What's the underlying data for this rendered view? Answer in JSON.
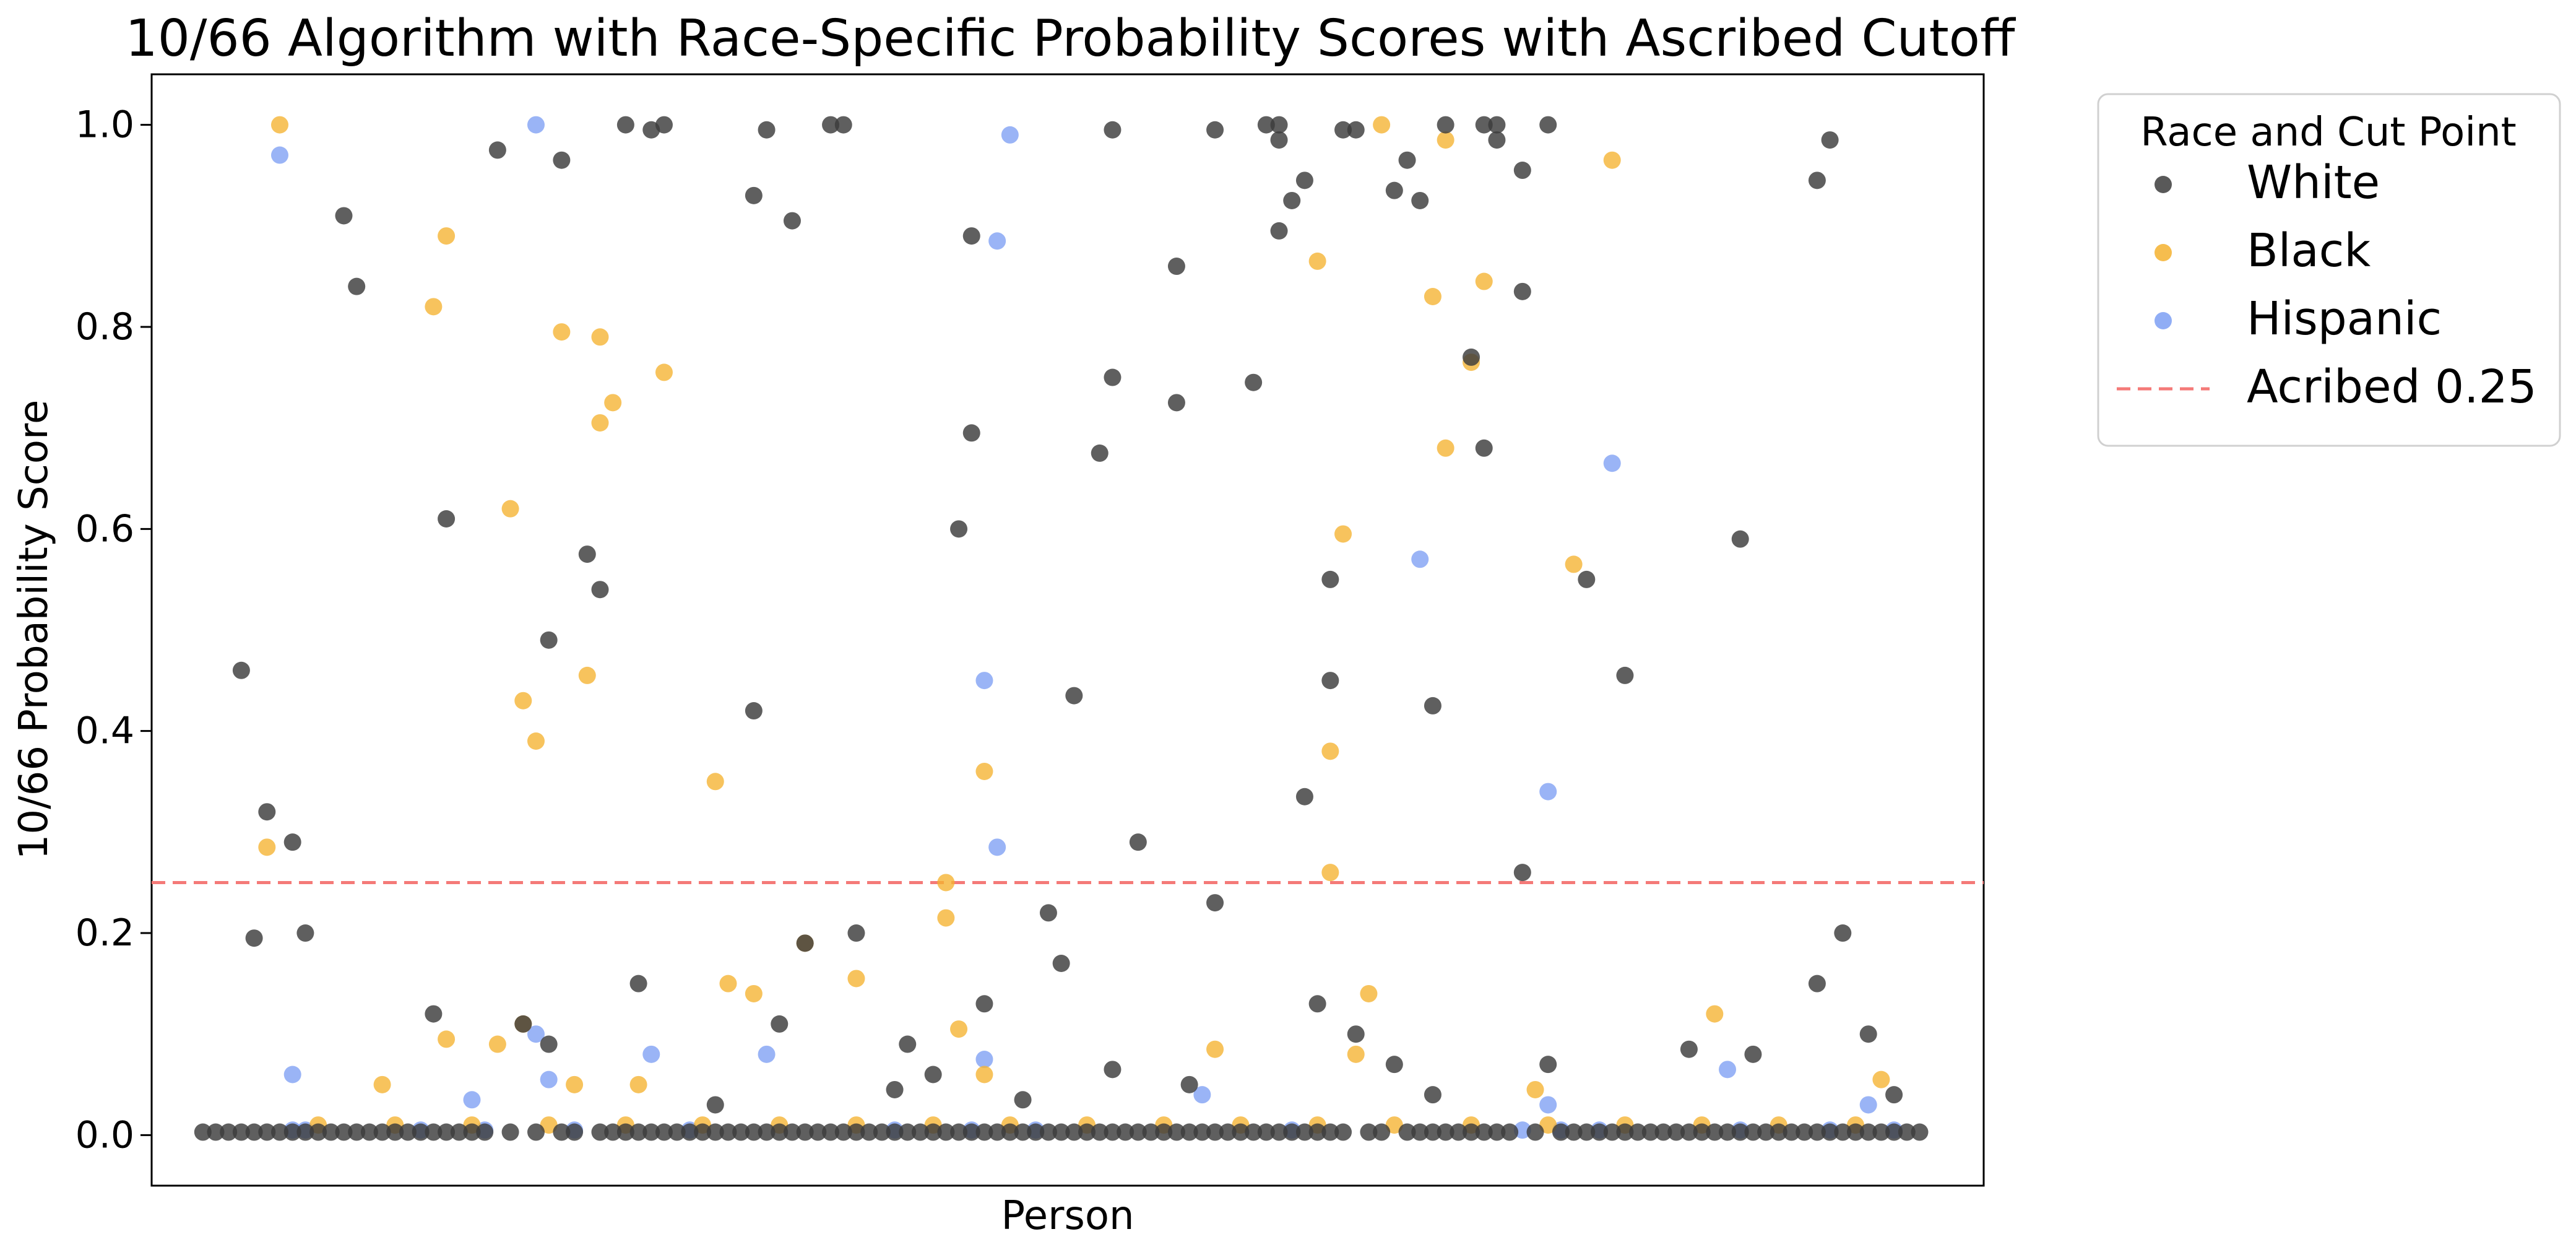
{
  "chart_data": {
    "type": "scatter",
    "title": "10/66 Algorithm with Race-Specific Probability Scores with Ascribed Cutoff",
    "xlabel": "Person",
    "ylabel": "10/66 Probability Score",
    "ylim": [
      -0.05,
      1.05
    ],
    "yticks": [
      "0.0",
      "0.2",
      "0.4",
      "0.6",
      "0.8",
      "1.0"
    ],
    "xticks_shown": false,
    "grid": false,
    "legend": {
      "title": "Race and Cut Point",
      "placement": "outside-upper-right",
      "entries": [
        "White",
        "Black",
        "Hispanic",
        "Acribed 0.25"
      ]
    },
    "cutoff": {
      "name": "Acribed 0.25",
      "value": 0.25,
      "color": "#f47a78",
      "style": "dashed"
    },
    "series": [
      {
        "name": "White",
        "color": "#3c3c3c",
        "points": [
          [
            4,
            0.46
          ],
          [
            6,
            0.32
          ],
          [
            5,
            0.195
          ],
          [
            8,
            0.29
          ],
          [
            9,
            0.2
          ],
          [
            12,
            0.91
          ],
          [
            13,
            0.84
          ],
          [
            20,
            0.61
          ],
          [
            24,
            0.975
          ],
          [
            29,
            0.965
          ],
          [
            28,
            0.49
          ],
          [
            31,
            0.575
          ],
          [
            32,
            0.54
          ],
          [
            34,
            1.0
          ],
          [
            36,
            0.995
          ],
          [
            37,
            1.0
          ],
          [
            44,
            0.42
          ],
          [
            45,
            0.995
          ],
          [
            44,
            0.93
          ],
          [
            47,
            0.905
          ],
          [
            50,
            1.0
          ],
          [
            51,
            1.0
          ],
          [
            61,
            0.89
          ],
          [
            60,
            0.6
          ],
          [
            61,
            0.695
          ],
          [
            67,
            0.22
          ],
          [
            68,
            0.17
          ],
          [
            69,
            0.435
          ],
          [
            71,
            0.675
          ],
          [
            72,
            0.995
          ],
          [
            72,
            0.75
          ],
          [
            74,
            0.29
          ],
          [
            77,
            0.86
          ],
          [
            77,
            0.725
          ],
          [
            80,
            0.995
          ],
          [
            80,
            0.23
          ],
          [
            83,
            0.745
          ],
          [
            84,
            1.0
          ],
          [
            85,
            1.0
          ],
          [
            85,
            0.985
          ],
          [
            85,
            0.895
          ],
          [
            86,
            0.925
          ],
          [
            87,
            0.945
          ],
          [
            87,
            0.335
          ],
          [
            90,
            0.995
          ],
          [
            91,
            0.995
          ],
          [
            89,
            0.45
          ],
          [
            89,
            0.55
          ],
          [
            94,
            0.935
          ],
          [
            95,
            0.965
          ],
          [
            96,
            0.925
          ],
          [
            97,
            0.425
          ],
          [
            98,
            1.0
          ],
          [
            100,
            0.77
          ],
          [
            101,
            0.68
          ],
          [
            101,
            1.0
          ],
          [
            102,
            1.0
          ],
          [
            102,
            0.985
          ],
          [
            104,
            0.955
          ],
          [
            104,
            0.835
          ],
          [
            104,
            0.26
          ],
          [
            106,
            1.0
          ],
          [
            109,
            0.55
          ],
          [
            112,
            0.455
          ],
          [
            121,
            0.59
          ],
          [
            127,
            0.945
          ],
          [
            128,
            0.985
          ],
          [
            127,
            0.15
          ],
          [
            129,
            0.2
          ],
          [
            35,
            0.15
          ],
          [
            19,
            0.12
          ],
          [
            26,
            0.11
          ],
          [
            28,
            0.09
          ],
          [
            41,
            0.03
          ],
          [
            55,
            0.045
          ],
          [
            62,
            0.13
          ],
          [
            65,
            0.035
          ],
          [
            72,
            0.065
          ],
          [
            78,
            0.05
          ],
          [
            88,
            0.13
          ],
          [
            91,
            0.1
          ],
          [
            94,
            0.07
          ],
          [
            97,
            0.04
          ],
          [
            106,
            0.07
          ],
          [
            117,
            0.085
          ],
          [
            122,
            0.08
          ],
          [
            131,
            0.1
          ],
          [
            133,
            0.04
          ],
          [
            52,
            0.2
          ],
          [
            48,
            0.19
          ],
          [
            46,
            0.11
          ],
          [
            56,
            0.09
          ],
          [
            58,
            0.06
          ]
        ],
        "baseline_points_x": [
          1,
          2,
          3,
          4,
          5,
          6,
          7,
          8,
          9,
          10,
          11,
          12,
          13,
          14,
          15,
          16,
          17,
          18,
          19,
          20,
          21,
          22,
          23,
          25,
          27,
          29,
          30,
          32,
          33,
          34,
          35,
          36,
          37,
          38,
          39,
          40,
          41,
          42,
          43,
          44,
          45,
          46,
          47,
          48,
          49,
          50,
          51,
          52,
          53,
          54,
          55,
          56,
          57,
          58,
          59,
          60,
          61,
          62,
          63,
          64,
          65,
          66,
          67,
          68,
          69,
          70,
          71,
          72,
          73,
          74,
          75,
          76,
          77,
          78,
          79,
          80,
          81,
          82,
          83,
          84,
          85,
          86,
          87,
          88,
          89,
          90,
          92,
          93,
          95,
          96,
          97,
          98,
          99,
          100,
          101,
          102,
          103,
          105,
          107,
          108,
          109,
          110,
          111,
          112,
          113,
          114,
          115,
          116,
          117,
          118,
          119,
          120,
          121,
          122,
          123,
          124,
          125,
          126,
          127,
          128,
          129,
          130,
          131,
          132,
          133,
          134,
          135
        ],
        "baseline_value": 0.003
      },
      {
        "name": "Black",
        "color": "#f5b22f",
        "points": [
          [
            7,
            1.0
          ],
          [
            6,
            0.285
          ],
          [
            19,
            0.82
          ],
          [
            20,
            0.89
          ],
          [
            29,
            0.795
          ],
          [
            31,
            0.455
          ],
          [
            27,
            0.39
          ],
          [
            26,
            0.43
          ],
          [
            32,
            0.705
          ],
          [
            33,
            0.725
          ],
          [
            32,
            0.79
          ],
          [
            37,
            0.755
          ],
          [
            25,
            0.62
          ],
          [
            41,
            0.35
          ],
          [
            52,
            0.155
          ],
          [
            59,
            0.215
          ],
          [
            59,
            0.25
          ],
          [
            62,
            0.36
          ],
          [
            48,
            0.19
          ],
          [
            88,
            0.865
          ],
          [
            89,
            0.38
          ],
          [
            89,
            0.26
          ],
          [
            90,
            0.595
          ],
          [
            93,
            1.0
          ],
          [
            97,
            0.83
          ],
          [
            98,
            0.985
          ],
          [
            98,
            0.68
          ],
          [
            100,
            0.765
          ],
          [
            101,
            0.845
          ],
          [
            108,
            0.565
          ],
          [
            111,
            0.965
          ],
          [
            20,
            0.095
          ],
          [
            24,
            0.09
          ],
          [
            26,
            0.11
          ],
          [
            42,
            0.15
          ],
          [
            44,
            0.14
          ],
          [
            60,
            0.105
          ],
          [
            62,
            0.06
          ],
          [
            80,
            0.085
          ],
          [
            92,
            0.14
          ],
          [
            91,
            0.08
          ],
          [
            105,
            0.045
          ],
          [
            119,
            0.12
          ],
          [
            132,
            0.055
          ],
          [
            15,
            0.05
          ],
          [
            30,
            0.05
          ],
          [
            35,
            0.05
          ]
        ],
        "baseline_points_x": [
          10,
          16,
          22,
          28,
          34,
          40,
          46,
          52,
          58,
          64,
          70,
          76,
          82,
          88,
          94,
          100,
          106,
          112,
          118,
          124,
          130
        ],
        "baseline_value": 0.01
      },
      {
        "name": "Hispanic",
        "color": "#7d9ff3",
        "points": [
          [
            7,
            0.97
          ],
          [
            27,
            1.0
          ],
          [
            64,
            0.99
          ],
          [
            63,
            0.885
          ],
          [
            62,
            0.45
          ],
          [
            63,
            0.285
          ],
          [
            96,
            0.57
          ],
          [
            106,
            0.34
          ],
          [
            111,
            0.665
          ],
          [
            8,
            0.06
          ],
          [
            27,
            0.1
          ],
          [
            28,
            0.055
          ],
          [
            36,
            0.08
          ],
          [
            45,
            0.08
          ],
          [
            62,
            0.075
          ],
          [
            79,
            0.04
          ],
          [
            106,
            0.03
          ],
          [
            120,
            0.065
          ],
          [
            131,
            0.03
          ],
          [
            8,
            0.005
          ],
          [
            22,
            0.035
          ]
        ],
        "baseline_points_x": [
          9,
          18,
          23,
          30,
          39,
          55,
          61,
          66,
          86,
          104,
          107,
          110,
          121,
          128,
          133
        ],
        "baseline_value": 0.005
      }
    ]
  }
}
